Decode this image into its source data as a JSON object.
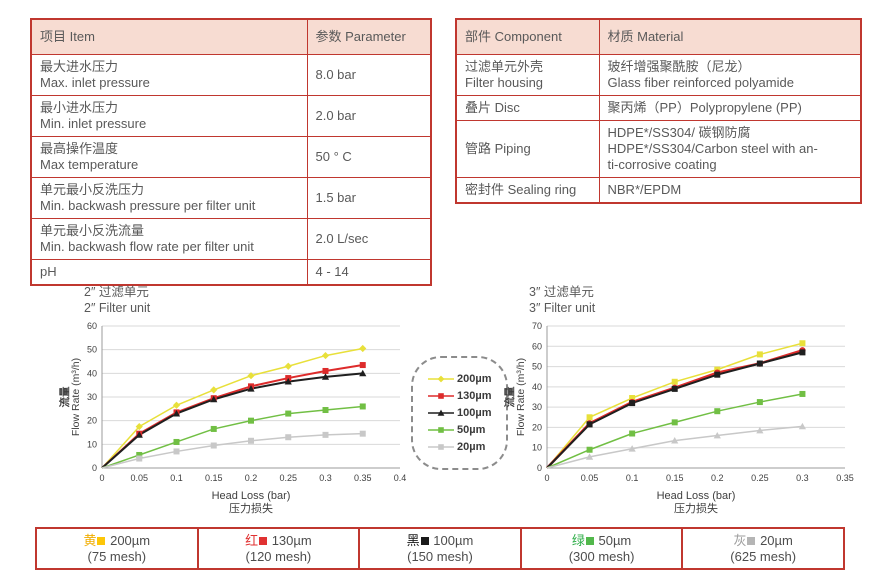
{
  "spec_table": {
    "col_item": "项目 Item",
    "col_param": "参数 Parameter",
    "rows": [
      {
        "item": [
          "最大进水压力",
          "Max. inlet pressure"
        ],
        "param": "8.0 bar"
      },
      {
        "item": [
          "最小进水压力",
          "Min. inlet pressure"
        ],
        "param": "2.0 bar"
      },
      {
        "item": [
          "最高操作温度",
          "Max temperature"
        ],
        "param": "50 ° C"
      },
      {
        "item": [
          "单元最小反洗压力",
          "Min. backwash pressure per filter unit"
        ],
        "param": "1.5 bar"
      },
      {
        "item": [
          "单元最小反洗流量",
          "Min. backwash flow rate per filter unit"
        ],
        "param": "2.0 L/sec"
      },
      {
        "item": [
          "pH"
        ],
        "param": "4 - 14"
      }
    ]
  },
  "material_table": {
    "col_component": "部件 Component",
    "col_material": "材质 Material",
    "rows": [
      {
        "component": [
          "过滤单元外壳",
          "Filter housing"
        ],
        "material": [
          "玻纤增强聚酰胺（尼龙）",
          "Glass fiber reinforced polyamide"
        ]
      },
      {
        "component": [
          "叠片 Disc"
        ],
        "material": [
          "聚丙烯（PP）Polypropylene (PP)"
        ]
      },
      {
        "component": [
          "管路 Piping"
        ],
        "material": [
          "HDPE*/SS304/ 碳钢防腐",
          "HDPE*/SS304/Carbon steel with an-",
          "ti-corrosive coating"
        ]
      },
      {
        "component": [
          "密封件 Sealing ring"
        ],
        "material": [
          "NBR*/EPDM"
        ]
      }
    ]
  },
  "chart_data": [
    {
      "type": "line",
      "title_zh": "2″ 过滤单元",
      "title_en": "2″ Filter unit",
      "xlabel_en": "Head Loss (bar)",
      "xlabel_zh": "压力损失",
      "ylabel_zh": "流量",
      "ylabel_en": "Flow Rate (m³/h)",
      "xlim": [
        0,
        0.4
      ],
      "ylim": [
        0,
        60
      ],
      "xtick_labels": [
        "0",
        "0.05",
        "0.1",
        "0.15",
        "0.2",
        "0.25",
        "0.3",
        "0.35",
        "0.4"
      ],
      "yticks": [
        0,
        10,
        20,
        30,
        40,
        50,
        60
      ],
      "grid": true,
      "x": [
        0,
        0.05,
        0.1,
        0.15,
        0.2,
        0.25,
        0.3,
        0.35
      ],
      "series": [
        {
          "name": "200µm",
          "color": "#e8e03a",
          "marker": "diamond",
          "lw": 1.5,
          "values": [
            0,
            17.5,
            26.5,
            33,
            39,
            43,
            47.5,
            50.5
          ]
        },
        {
          "name": "130µm",
          "color": "#dd2b2b",
          "marker": "square",
          "lw": 2,
          "values": [
            0,
            14.5,
            23.5,
            29.5,
            34.5,
            38,
            41,
            43.5
          ]
        },
        {
          "name": "100µm",
          "color": "#1f1f1f",
          "marker": "triangle",
          "lw": 2,
          "values": [
            0,
            14,
            23,
            29,
            33.5,
            36.5,
            38.5,
            40
          ]
        },
        {
          "name": "50µm",
          "color": "#71bf44",
          "marker": "square",
          "lw": 1.5,
          "values": [
            0,
            5.5,
            11,
            16.5,
            20,
            23,
            24.5,
            26
          ]
        },
        {
          "name": "20µm",
          "color": "#c8c8c8",
          "marker": "square",
          "lw": 1.5,
          "values": [
            0,
            4,
            7,
            9.5,
            11.5,
            13,
            14,
            14.5
          ]
        }
      ]
    },
    {
      "type": "line",
      "title_zh": "3″ 过滤单元",
      "title_en": "3″ Filter unit",
      "xlabel_en": "Head Loss (bar)",
      "xlabel_zh": "压力损失",
      "ylabel_zh": "流量",
      "ylabel_en": "Flow Rate (m³/h)",
      "xlim": [
        0,
        0.35
      ],
      "ylim": [
        0,
        70
      ],
      "xtick_labels": [
        "0",
        "0.05",
        "0.1",
        "0.15",
        "0.2",
        "0.25",
        "0.3",
        "0.35"
      ],
      "yticks": [
        0,
        10,
        20,
        30,
        40,
        50,
        60,
        70
      ],
      "grid": true,
      "x": [
        0,
        0.05,
        0.1,
        0.15,
        0.2,
        0.25,
        0.3
      ],
      "series": [
        {
          "name": "200µm",
          "color": "#e8e03a",
          "marker": "square",
          "lw": 1.5,
          "values": [
            0,
            25,
            34.5,
            42.5,
            48.5,
            56,
            61.5
          ]
        },
        {
          "name": "130µm",
          "color": "#dd2b2b",
          "marker": "circle",
          "lw": 2.5,
          "values": [
            0,
            22,
            32.5,
            39.5,
            47,
            51.5,
            58
          ]
        },
        {
          "name": "100µm",
          "color": "#1f1f1f",
          "marker": "square",
          "lw": 2,
          "values": [
            0,
            21.5,
            32,
            39,
            46,
            51.5,
            57
          ]
        },
        {
          "name": "50µm",
          "color": "#71bf44",
          "marker": "square",
          "lw": 1.5,
          "values": [
            0,
            9,
            17,
            22.5,
            28,
            32.5,
            36.5
          ]
        },
        {
          "name": "20µm",
          "color": "#c8c8c8",
          "marker": "triangle",
          "lw": 1.5,
          "values": [
            0,
            5.5,
            9.5,
            13.5,
            16,
            18.5,
            20.5
          ]
        }
      ]
    }
  ],
  "chart_legend": {
    "items": [
      {
        "label": "200µm",
        "color": "#e8e03a",
        "marker": "diamond"
      },
      {
        "label": "130µm",
        "color": "#dd2b2b",
        "marker": "square"
      },
      {
        "label": "100µm",
        "color": "#1f1f1f",
        "marker": "triangle"
      },
      {
        "label": "50µm",
        "color": "#71bf44",
        "marker": "square"
      },
      {
        "label": "20µm",
        "color": "#c8c8c8",
        "marker": "square"
      }
    ]
  },
  "bottom_legend": {
    "items": [
      {
        "cn": "黄",
        "cn_color": "#f0ad00",
        "swatch": "#fdc608",
        "size": "200µm",
        "mesh": "(75 mesh)"
      },
      {
        "cn": "红",
        "cn_color": "#e03232",
        "swatch": "#e03232",
        "size": "130µm",
        "mesh": "(120 mesh)"
      },
      {
        "cn": "黑",
        "cn_color": "#1a1a1a",
        "swatch": "#1a1a1a",
        "size": "100µm",
        "mesh": "(150 mesh)"
      },
      {
        "cn": "绿",
        "cn_color": "#2fae49",
        "swatch": "#52b84c",
        "size": "50µm",
        "mesh": "(300 mesh)"
      },
      {
        "cn": "灰",
        "cn_color": "#9e9e9e",
        "swatch": "#b5b5b5",
        "size": "20µm",
        "mesh": "(625 mesh)"
      }
    ]
  },
  "colors": {
    "table_border": "#c0372f",
    "header_bg": "#f7dcd2",
    "grid": "#d9d9d9",
    "axis": "#9b9b9b",
    "tick_text": "#404040"
  }
}
